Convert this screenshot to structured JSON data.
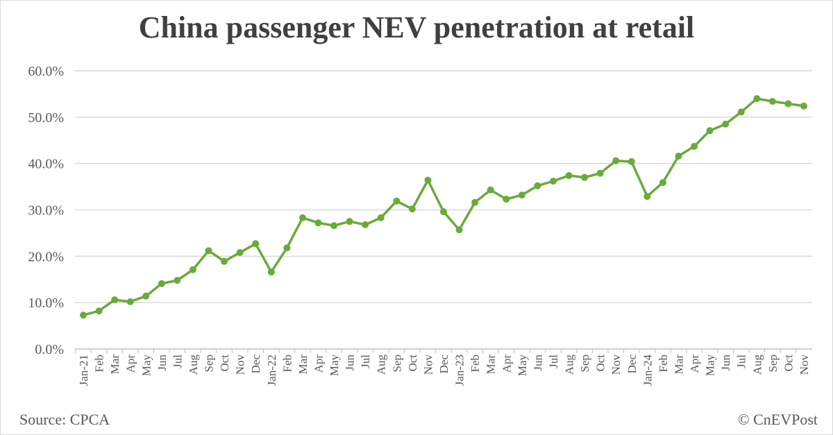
{
  "chart_data": {
    "type": "line",
    "title": "China passenger NEV penetration at retail",
    "source": "Source: CPCA",
    "credit": "© CnEVPost",
    "xlabel": "",
    "ylabel": "",
    "ylim": [
      0,
      60
    ],
    "yticks": [
      "0.0%",
      "10.0%",
      "20.0%",
      "30.0%",
      "40.0%",
      "50.0%",
      "60.0%"
    ],
    "grid": true,
    "color": "#6aaa3a",
    "categories": [
      "Jan-21",
      "Feb",
      "Mar",
      "Apr",
      "May",
      "Jun",
      "Jul",
      "Aug",
      "Sep",
      "Oct",
      "Nov",
      "Dec",
      "Jan-22",
      "Feb",
      "Mar",
      "Apr",
      "May",
      "Jun",
      "Jul",
      "Aug",
      "Sep",
      "Oct",
      "Nov",
      "Dec",
      "Jan-23",
      "Feb",
      "Mar",
      "Apr",
      "May",
      "Jun",
      "Jul",
      "Aug",
      "Sep",
      "Oct",
      "Nov",
      "Dec",
      "Jan-24",
      "Feb",
      "Mar",
      "Apr",
      "May",
      "Jun",
      "Jul",
      "Aug",
      "Sep",
      "Oct",
      "Nov"
    ],
    "values": [
      7.3,
      8.2,
      10.6,
      10.2,
      11.4,
      14.1,
      14.8,
      17.1,
      21.2,
      18.9,
      20.8,
      22.7,
      16.6,
      21.8,
      28.3,
      27.2,
      26.6,
      27.5,
      26.8,
      28.3,
      31.9,
      30.2,
      36.4,
      29.6,
      25.7,
      31.6,
      34.3,
      32.3,
      33.2,
      35.2,
      36.2,
      37.4,
      37.0,
      37.9,
      40.6,
      40.4,
      32.9,
      35.9,
      41.6,
      43.7,
      47.1,
      48.5,
      51.1,
      54.0,
      53.4,
      52.9,
      52.4
    ]
  }
}
